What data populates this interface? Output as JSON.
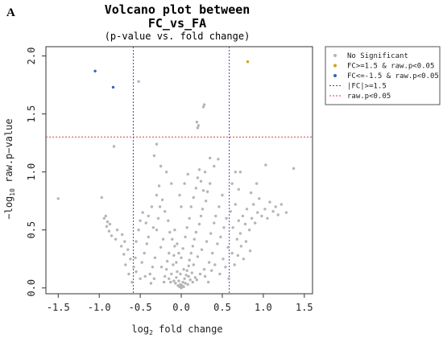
{
  "panel_label": "A",
  "chart_data": {
    "type": "scatter",
    "title_line1": "Volcano plot between",
    "title_line2": "FC_vs_FA",
    "subtitle": "(p-value vs. fold change)",
    "xlabel_main": "log",
    "xlabel_sub": "2",
    "xlabel_rest": " fold change",
    "ylabel_pre": "−log",
    "ylabel_sub": "10",
    "ylabel_rest": " raw.p−value",
    "xlim": [
      -1.65,
      1.6
    ],
    "ylim": [
      -0.05,
      2.08
    ],
    "xticks": [
      -1.5,
      -1.0,
      -0.5,
      0.0,
      0.5,
      1.0,
      1.5
    ],
    "xtick_labels": [
      "-1.5",
      "-1.0",
      "-0.5",
      "0.0",
      "0.5",
      "1.0",
      "1.5"
    ],
    "yticks": [
      0.0,
      0.5,
      1.0,
      1.5,
      2.0
    ],
    "ytick_labels": [
      "0.0",
      "0.5",
      "1.0",
      "1.5",
      "2.0"
    ],
    "thresholds": {
      "fc_lines": [
        -0.585,
        0.585
      ],
      "p_line": 1.301
    },
    "colors": {
      "ns": "#b5b5b5",
      "up": "#d4a017",
      "down": "#3a5fbf",
      "fc_line": "#3a4fb8",
      "p_line": "#d94040"
    },
    "legend": {
      "position": "top-right-outside",
      "items": [
        {
          "label": "No Significant",
          "type": "point",
          "color": "#b5b5b5"
        },
        {
          "label": "FC>=1.5 & raw.p<0.05",
          "type": "point",
          "color": "#d4a017"
        },
        {
          "label": "FC<=-1.5 & raw.p<0.05",
          "type": "point",
          "color": "#3a5fbf"
        },
        {
          "label": "|FC|>=1.5",
          "type": "line",
          "color": "#3a4fb8"
        },
        {
          "label": "raw.p<0.05",
          "type": "line",
          "color": "#d94040"
        }
      ]
    },
    "series": [
      {
        "name": "FC>=1.5 & raw.p<0.05",
        "color": "#d4a017",
        "points": [
          [
            0.81,
            1.95
          ]
        ]
      },
      {
        "name": "FC<=-1.5 & raw.p<0.05",
        "color": "#3a5fbf",
        "points": [
          [
            -1.05,
            1.87
          ],
          [
            -0.83,
            1.73
          ]
        ]
      },
      {
        "name": "No Significant",
        "color": "#b5b5b5",
        "points": [
          [
            -0.52,
            1.78
          ],
          [
            0.28,
            1.58
          ],
          [
            0.27,
            1.56
          ],
          [
            0.19,
            1.43
          ],
          [
            0.21,
            1.4
          ],
          [
            0.2,
            1.38
          ],
          [
            -0.82,
            1.22
          ],
          [
            -0.3,
            1.24
          ],
          [
            -0.33,
            1.14
          ],
          [
            0.45,
            1.11
          ],
          [
            -0.25,
            1.05
          ],
          [
            0.29,
            1.0
          ],
          [
            0.66,
            1.0
          ],
          [
            0.72,
            1.0
          ],
          [
            1.03,
            1.06
          ],
          [
            1.37,
            1.03
          ],
          [
            -1.5,
            0.77
          ],
          [
            -0.97,
            0.78
          ],
          [
            -0.92,
            0.62
          ],
          [
            -0.9,
            0.57
          ],
          [
            -0.91,
            0.53
          ],
          [
            -0.88,
            0.49
          ],
          [
            -0.85,
            0.45
          ],
          [
            -0.8,
            0.42
          ],
          [
            -0.73,
            0.36
          ],
          [
            -0.65,
            0.33
          ],
          [
            -0.7,
            0.29
          ],
          [
            -0.62,
            0.25
          ],
          [
            -0.58,
            0.18
          ],
          [
            -0.55,
            0.14
          ],
          [
            -0.6,
            0.05
          ],
          [
            -0.5,
            0.08
          ],
          [
            -0.48,
            0.22
          ],
          [
            -0.45,
            0.3
          ],
          [
            -0.42,
            0.38
          ],
          [
            -0.4,
            0.44
          ],
          [
            -0.38,
            0.12
          ],
          [
            -0.35,
            0.18
          ],
          [
            -0.32,
            0.26
          ],
          [
            -0.3,
            0.5
          ],
          [
            -0.28,
            0.6
          ],
          [
            -0.26,
            0.7
          ],
          [
            -0.25,
            0.35
          ],
          [
            -0.22,
            0.42
          ],
          [
            -0.2,
            0.1
          ],
          [
            -0.18,
            0.16
          ],
          [
            -0.17,
            0.23
          ],
          [
            -0.15,
            0.3
          ],
          [
            -0.13,
            0.05
          ],
          [
            -0.12,
            0.12
          ],
          [
            -0.1,
            0.2
          ],
          [
            -0.09,
            0.28
          ],
          [
            -0.08,
            0.36
          ],
          [
            -0.07,
            0.04
          ],
          [
            -0.06,
            0.09
          ],
          [
            -0.05,
            0.14
          ],
          [
            -0.04,
            0.02
          ],
          [
            -0.03,
            0.06
          ],
          [
            -0.02,
            0.01
          ],
          [
            -0.01,
            0.03
          ],
          [
            0.0,
            0.0
          ],
          [
            0.01,
            0.02
          ],
          [
            0.02,
            0.05
          ],
          [
            0.03,
            0.01
          ],
          [
            0.04,
            0.08
          ],
          [
            0.05,
            0.04
          ],
          [
            0.06,
            0.11
          ],
          [
            0.07,
            0.15
          ],
          [
            0.08,
            0.03
          ],
          [
            0.09,
            0.19
          ],
          [
            0.1,
            0.24
          ],
          [
            0.11,
            0.07
          ],
          [
            0.12,
            0.3
          ],
          [
            0.13,
            0.13
          ],
          [
            0.14,
            0.36
          ],
          [
            0.15,
            0.2
          ],
          [
            0.16,
            0.42
          ],
          [
            0.17,
            0.09
          ],
          [
            0.18,
            0.48
          ],
          [
            0.2,
            0.27
          ],
          [
            0.22,
            0.55
          ],
          [
            0.24,
            0.62
          ],
          [
            0.25,
            0.33
          ],
          [
            0.26,
            0.68
          ],
          [
            0.28,
            0.16
          ],
          [
            0.3,
            0.75
          ],
          [
            0.31,
            0.4
          ],
          [
            0.32,
            0.83
          ],
          [
            0.34,
            0.22
          ],
          [
            0.35,
            0.9
          ],
          [
            0.36,
            0.47
          ],
          [
            0.38,
            0.3
          ],
          [
            0.4,
            0.56
          ],
          [
            0.42,
            0.62
          ],
          [
            0.44,
            0.38
          ],
          [
            0.46,
            0.7
          ],
          [
            0.48,
            0.44
          ],
          [
            0.5,
            0.8
          ],
          [
            0.52,
            0.52
          ],
          [
            0.55,
            0.6
          ],
          [
            0.57,
            0.35
          ],
          [
            0.6,
            0.66
          ],
          [
            0.63,
            0.52
          ],
          [
            0.66,
            0.72
          ],
          [
            0.68,
            0.42
          ],
          [
            0.7,
            0.58
          ],
          [
            0.72,
            0.47
          ],
          [
            0.75,
            0.62
          ],
          [
            0.78,
            0.55
          ],
          [
            0.8,
            0.68
          ],
          [
            0.83,
            0.5
          ],
          [
            0.86,
            0.6
          ],
          [
            0.88,
            0.72
          ],
          [
            0.9,
            0.56
          ],
          [
            0.93,
            0.65
          ],
          [
            0.95,
            0.77
          ],
          [
            0.98,
            0.62
          ],
          [
            1.02,
            0.68
          ],
          [
            1.05,
            0.6
          ],
          [
            1.08,
            0.74
          ],
          [
            1.12,
            0.66
          ],
          [
            1.15,
            0.7
          ],
          [
            1.18,
            0.63
          ],
          [
            1.22,
            0.72
          ],
          [
            1.28,
            0.65
          ],
          [
            -0.55,
            0.4
          ],
          [
            -0.52,
            0.5
          ],
          [
            -0.5,
            0.58
          ],
          [
            -0.47,
            0.65
          ],
          [
            -0.43,
            0.56
          ],
          [
            -0.4,
            0.62
          ],
          [
            -0.36,
            0.7
          ],
          [
            -0.34,
            0.52
          ],
          [
            -0.3,
            0.8
          ],
          [
            -0.27,
            0.88
          ],
          [
            -0.23,
            0.76
          ],
          [
            -0.2,
            0.66
          ],
          [
            -0.16,
            0.58
          ],
          [
            -0.14,
            0.48
          ],
          [
            -0.11,
            0.42
          ],
          [
            -0.08,
            0.5
          ],
          [
            -0.05,
            0.38
          ],
          [
            -0.03,
            0.3
          ],
          [
            0.0,
            0.26
          ],
          [
            0.02,
            0.34
          ],
          [
            0.05,
            0.44
          ],
          [
            0.07,
            0.52
          ],
          [
            0.1,
            0.6
          ],
          [
            0.12,
            0.7
          ],
          [
            0.15,
            0.78
          ],
          [
            0.18,
            0.86
          ],
          [
            0.2,
            0.95
          ],
          [
            0.22,
            1.02
          ],
          [
            0.24,
            0.92
          ],
          [
            0.27,
            0.84
          ],
          [
            -0.01,
            0.12
          ],
          [
            0.03,
            0.16
          ],
          [
            -0.06,
            0.22
          ],
          [
            0.09,
            0.1
          ],
          [
            -0.09,
            0.06
          ],
          [
            0.14,
            0.05
          ],
          [
            -0.15,
            0.08
          ],
          [
            0.19,
            0.07
          ],
          [
            -0.21,
            0.05
          ],
          [
            0.23,
            0.12
          ],
          [
            -0.24,
            0.18
          ],
          [
            0.29,
            0.1
          ],
          [
            -0.33,
            0.08
          ],
          [
            0.33,
            0.05
          ],
          [
            -0.37,
            0.04
          ],
          [
            0.37,
            0.15
          ],
          [
            -0.44,
            0.1
          ],
          [
            0.41,
            0.2
          ],
          [
            0.47,
            0.12
          ],
          [
            0.51,
            0.25
          ],
          [
            -0.56,
            0.26
          ],
          [
            0.54,
            0.18
          ],
          [
            0.58,
            0.08
          ],
          [
            -0.64,
            0.12
          ],
          [
            -0.68,
            0.2
          ],
          [
            0.62,
            0.3
          ],
          [
            0.65,
            0.2
          ],
          [
            0.69,
            0.28
          ],
          [
            0.73,
            0.36
          ],
          [
            0.76,
            0.25
          ],
          [
            0.79,
            0.4
          ],
          [
            0.84,
            0.32
          ],
          [
            0.62,
            0.9
          ],
          [
            0.7,
            0.85
          ],
          [
            0.85,
            0.82
          ],
          [
            0.92,
            0.9
          ],
          [
            -0.94,
            0.6
          ],
          [
            -0.87,
            0.55
          ],
          [
            -0.78,
            0.5
          ],
          [
            -0.72,
            0.46
          ],
          [
            -0.69,
            0.4
          ],
          [
            0.08,
            0.98
          ],
          [
            -0.12,
            0.9
          ],
          [
            -0.18,
            1.0
          ],
          [
            0.35,
            1.12
          ],
          [
            0.4,
            1.05
          ],
          [
            0.0,
            0.7
          ],
          [
            -0.02,
            0.8
          ],
          [
            0.04,
            0.9
          ]
        ]
      }
    ]
  }
}
